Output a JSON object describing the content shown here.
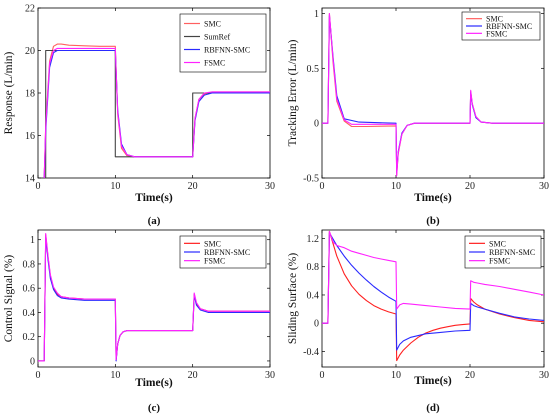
{
  "chart_data": [
    {
      "type": "line",
      "panel_label": "(a)",
      "xlabel": "Time(s)",
      "ylabel": "Response (L/min)",
      "xlim": [
        0,
        30
      ],
      "ylim": [
        14,
        22
      ],
      "xticks": [
        0,
        10,
        20,
        30
      ],
      "yticks": [
        14,
        16,
        18,
        20,
        22
      ],
      "legend": "top-right",
      "grid": false,
      "series": [
        {
          "name": "SMC",
          "color": "#ff6060",
          "x": [
            0.8,
            1.0,
            1.5,
            2.0,
            2.5,
            3.0,
            4.0,
            6.0,
            8.0,
            10.0,
            10.3,
            10.8,
            11.5,
            12.5,
            14.0,
            16.0,
            20.0,
            20.3,
            20.8,
            21.5,
            22.5,
            25.0,
            30.0
          ],
          "y": [
            14.0,
            16.5,
            19.5,
            20.2,
            20.3,
            20.3,
            20.25,
            20.22,
            20.2,
            20.2,
            17.0,
            15.4,
            15.05,
            15.0,
            15.0,
            15.0,
            15.0,
            16.8,
            17.7,
            17.95,
            18.05,
            18.05,
            18.05
          ]
        },
        {
          "name": "SumRef",
          "color": "#444444",
          "x": [
            1.0,
            1.0,
            10.0,
            10.0,
            20.0,
            20.0,
            30.0
          ],
          "y": [
            14.0,
            20.0,
            20.0,
            15.0,
            15.0,
            18.0,
            18.0
          ]
        },
        {
          "name": "RBFNN-SMC",
          "color": "#2a2aff",
          "x": [
            0.8,
            1.0,
            1.5,
            2.0,
            2.5,
            3.0,
            5.0,
            10.0,
            10.3,
            10.8,
            11.5,
            12.5,
            14.0,
            20.0,
            20.3,
            20.8,
            21.5,
            22.5,
            30.0
          ],
          "y": [
            14.0,
            16.2,
            19.2,
            19.9,
            20.0,
            20.0,
            20.0,
            20.0,
            17.2,
            15.6,
            15.1,
            15.0,
            15.0,
            15.0,
            16.7,
            17.6,
            17.9,
            18.0,
            18.0
          ]
        },
        {
          "name": "FSMC",
          "color": "#ff22ff",
          "x": [
            0.8,
            1.0,
            1.5,
            2.0,
            2.5,
            3.0,
            4.0,
            6.0,
            10.0,
            10.3,
            10.8,
            11.5,
            12.5,
            14.0,
            20.0,
            20.3,
            20.8,
            21.5,
            22.5,
            30.0
          ],
          "y": [
            14.0,
            16.4,
            19.4,
            20.0,
            20.1,
            20.1,
            20.1,
            20.1,
            20.1,
            17.1,
            15.5,
            15.1,
            15.0,
            15.0,
            15.0,
            16.8,
            17.7,
            18.0,
            18.05,
            18.05
          ]
        }
      ]
    },
    {
      "type": "line",
      "panel_label": "(b)",
      "xlabel": "Time(s)",
      "ylabel": "Tracking Error (L/min)",
      "xlim": [
        0,
        30
      ],
      "ylim": [
        -0.5,
        1.05
      ],
      "xticks": [
        0,
        10,
        20,
        30
      ],
      "yticks": [
        -0.5,
        0,
        0.5,
        1
      ],
      "legend": "top-right",
      "grid": false,
      "series": [
        {
          "name": "SMC",
          "color": "#ff6060",
          "x": [
            0,
            0.8,
            1.0,
            1.5,
            2.0,
            3.0,
            4.0,
            6.0,
            10.0,
            10.1,
            10.3,
            10.8,
            11.5,
            12.5,
            14.0,
            20.0,
            20.1,
            20.3,
            20.8,
            21.5,
            23.0,
            30.0
          ],
          "y": [
            0,
            0,
            1.0,
            0.55,
            0.2,
            0.02,
            -0.03,
            -0.03,
            -0.025,
            -0.47,
            -0.28,
            -0.1,
            -0.02,
            0,
            0,
            0,
            0.29,
            0.18,
            0.06,
            0.01,
            0,
            0
          ]
        },
        {
          "name": "RBFNN-SMC",
          "color": "#2a2aff",
          "x": [
            0,
            0.8,
            1.0,
            1.5,
            2.0,
            3.0,
            5.0,
            10.0,
            10.1,
            10.3,
            10.8,
            11.5,
            12.5,
            14.0,
            20.0,
            20.1,
            20.3,
            20.8,
            21.5,
            23.0,
            30.0
          ],
          "y": [
            0,
            0,
            0.98,
            0.6,
            0.25,
            0.04,
            0.01,
            0.0,
            -0.45,
            -0.26,
            -0.09,
            -0.02,
            0,
            0,
            0,
            0.28,
            0.17,
            0.05,
            0.01,
            0,
            0
          ]
        },
        {
          "name": "FSMC",
          "color": "#ff22ff",
          "x": [
            0,
            0.8,
            1.0,
            1.5,
            2.0,
            3.0,
            4.0,
            6.0,
            10.0,
            10.1,
            10.3,
            10.8,
            11.5,
            12.5,
            14.0,
            20.0,
            20.1,
            20.3,
            20.8,
            21.5,
            23.0,
            30.0
          ],
          "y": [
            0,
            0,
            1.0,
            0.58,
            0.22,
            0.03,
            -0.01,
            -0.01,
            -0.01,
            -0.48,
            -0.27,
            -0.1,
            -0.02,
            0,
            0,
            0,
            0.3,
            0.18,
            0.06,
            0.01,
            0,
            0
          ]
        }
      ]
    },
    {
      "type": "line",
      "panel_label": "(c)",
      "xlabel": "Time(s)",
      "ylabel": "Control Signal (%)",
      "xlim": [
        0,
        30
      ],
      "ylim": [
        -0.05,
        1.08
      ],
      "xticks": [
        0,
        10,
        20,
        30
      ],
      "yticks": [
        0,
        0.2,
        0.4,
        0.6,
        0.8,
        1
      ],
      "legend": "top-right",
      "grid": false,
      "series": [
        {
          "name": "SMC",
          "color": "#ff2020",
          "x": [
            0,
            0.8,
            1.0,
            1.3,
            1.6,
            2.0,
            2.5,
            3.0,
            4.0,
            6.0,
            10.0,
            10.1,
            10.3,
            10.6,
            11.0,
            11.5,
            12.5,
            20.0,
            20.2,
            20.5,
            21.0,
            22.0,
            24.0,
            30.0
          ],
          "y": [
            0,
            0,
            1.04,
            0.85,
            0.7,
            0.6,
            0.55,
            0.53,
            0.52,
            0.51,
            0.51,
            0.01,
            0.14,
            0.21,
            0.24,
            0.25,
            0.25,
            0.25,
            0.55,
            0.47,
            0.43,
            0.41,
            0.41,
            0.41
          ]
        },
        {
          "name": "RBFNN-SMC",
          "color": "#2a2aff",
          "x": [
            0,
            0.8,
            1.0,
            1.3,
            1.6,
            2.0,
            2.5,
            3.0,
            4.0,
            6.0,
            10.0,
            10.1,
            10.3,
            10.6,
            11.0,
            11.5,
            12.5,
            20.0,
            20.2,
            20.5,
            21.0,
            22.0,
            24.0,
            30.0
          ],
          "y": [
            0,
            0,
            1.02,
            0.83,
            0.68,
            0.59,
            0.54,
            0.52,
            0.51,
            0.5,
            0.5,
            0.0,
            0.14,
            0.21,
            0.24,
            0.25,
            0.25,
            0.25,
            0.54,
            0.46,
            0.42,
            0.4,
            0.4,
            0.4
          ]
        },
        {
          "name": "FSMC",
          "color": "#ff22ff",
          "x": [
            0,
            0.8,
            1.0,
            1.3,
            1.6,
            2.0,
            2.5,
            3.0,
            4.0,
            6.0,
            10.0,
            10.1,
            10.3,
            10.6,
            11.0,
            11.5,
            12.5,
            20.0,
            20.2,
            20.5,
            21.0,
            22.0,
            24.0,
            30.0
          ],
          "y": [
            0,
            0,
            1.05,
            0.86,
            0.71,
            0.61,
            0.56,
            0.53,
            0.52,
            0.51,
            0.51,
            0.01,
            0.14,
            0.21,
            0.24,
            0.25,
            0.25,
            0.25,
            0.56,
            0.48,
            0.43,
            0.41,
            0.41,
            0.41
          ]
        }
      ]
    },
    {
      "type": "line",
      "panel_label": "(d)",
      "xlabel": "Time(s)",
      "ylabel": "Sliding Surface (%)",
      "xlim": [
        0,
        30
      ],
      "ylim": [
        -0.62,
        1.32
      ],
      "xticks": [
        0,
        10,
        20,
        30
      ],
      "yticks": [
        -0.4,
        0,
        0.4,
        0.8,
        1.2
      ],
      "legend": "top-right",
      "grid": false,
      "series": [
        {
          "name": "SMC",
          "color": "#ff2020",
          "x": [
            0,
            0.8,
            1.0,
            2.0,
            3.0,
            4.0,
            5.0,
            6.0,
            7.0,
            8.0,
            9.0,
            10.0,
            10.1,
            10.5,
            11.0,
            12.0,
            13.0,
            14.0,
            15.0,
            16.0,
            17.0,
            18.0,
            19.0,
            20.0,
            20.1,
            20.5,
            21.0,
            22.0,
            24.0,
            26.0,
            28.0,
            30.0
          ],
          "y": [
            0,
            0,
            1.3,
            0.95,
            0.7,
            0.53,
            0.41,
            0.32,
            0.25,
            0.2,
            0.16,
            0.13,
            -0.53,
            -0.45,
            -0.38,
            -0.28,
            -0.2,
            -0.14,
            -0.1,
            -0.07,
            -0.05,
            -0.03,
            -0.02,
            -0.01,
            0.35,
            0.3,
            0.26,
            0.2,
            0.13,
            0.08,
            0.04,
            0.02
          ]
        },
        {
          "name": "RBFNN-SMC",
          "color": "#2a2aff",
          "x": [
            0,
            0.8,
            1.0,
            2.0,
            3.0,
            4.0,
            5.0,
            6.0,
            7.0,
            8.0,
            9.0,
            10.0,
            10.1,
            10.5,
            11.0,
            12.0,
            14.0,
            16.0,
            18.0,
            20.0,
            20.1,
            20.5,
            21.0,
            22.0,
            24.0,
            26.0,
            28.0,
            30.0
          ],
          "y": [
            0,
            0,
            1.28,
            1.1,
            0.95,
            0.82,
            0.71,
            0.61,
            0.52,
            0.44,
            0.37,
            0.31,
            -0.38,
            -0.3,
            -0.25,
            -0.2,
            -0.15,
            -0.13,
            -0.11,
            -0.1,
            0.28,
            0.25,
            0.23,
            0.2,
            0.14,
            0.09,
            0.06,
            0.04
          ]
        },
        {
          "name": "FSMC",
          "color": "#ff22ff",
          "x": [
            0,
            0.8,
            1.0,
            1.5,
            2.0,
            3.0,
            4.0,
            5.0,
            6.0,
            7.0,
            8.0,
            9.0,
            10.0,
            10.1,
            10.5,
            11.0,
            12.0,
            14.0,
            16.0,
            18.0,
            20.0,
            20.1,
            20.5,
            21.0,
            22.0,
            24.0,
            26.0,
            28.0,
            30.0
          ],
          "y": [
            0,
            0,
            1.3,
            1.15,
            1.1,
            1.07,
            1.02,
            0.99,
            0.96,
            0.93,
            0.91,
            0.89,
            0.87,
            0.2,
            0.26,
            0.28,
            0.27,
            0.25,
            0.23,
            0.21,
            0.2,
            0.6,
            0.58,
            0.57,
            0.55,
            0.52,
            0.48,
            0.44,
            0.4
          ]
        }
      ]
    }
  ]
}
